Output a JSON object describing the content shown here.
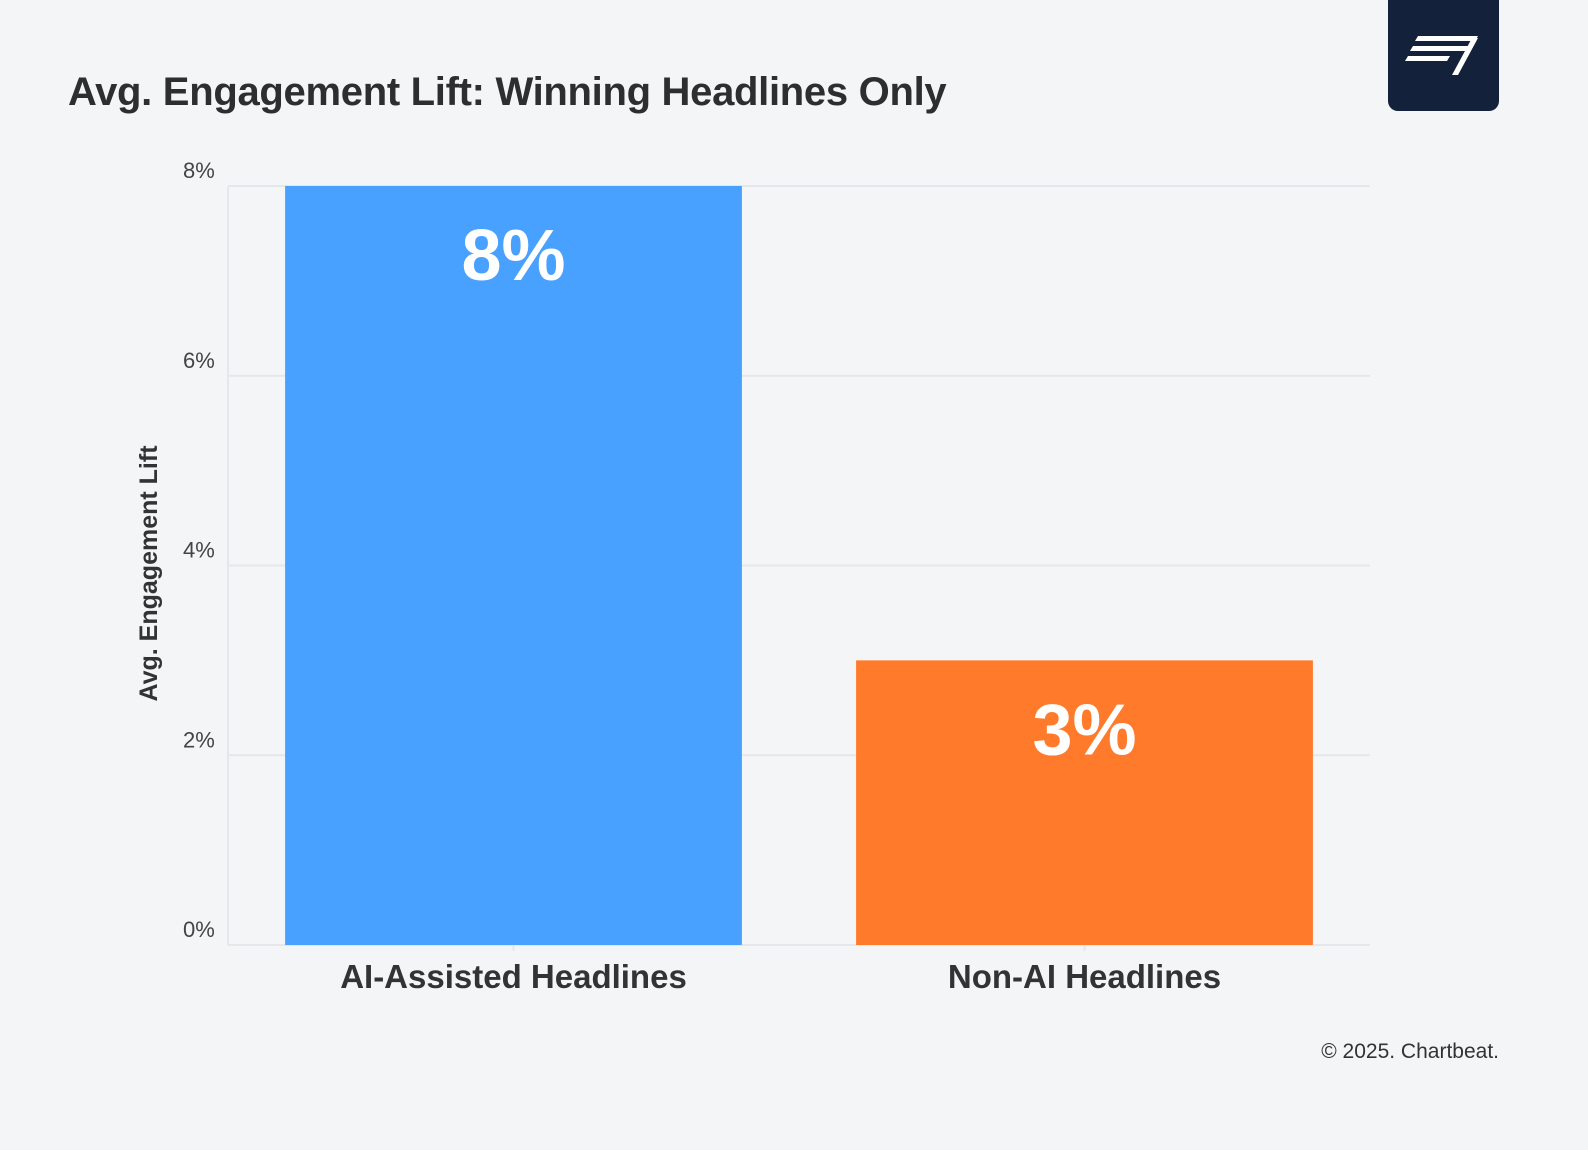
{
  "colors": {
    "background": "#f4f5f7",
    "logo_background": "#14213a",
    "ai_bar": "#48a0ff",
    "non_ai_bar": "#ff7b2b",
    "grid": "#e6e7ea",
    "text": "#333333"
  },
  "logo": {
    "icon": "chartbeat-logo-icon"
  },
  "chart_data": {
    "type": "bar",
    "title": "Avg. Engagement Lift: Winning Headlines Only",
    "xlabel": "",
    "ylabel": "Avg. Engagement Lift",
    "categories": [
      "AI-Assisted Headlines",
      "Non-AI Headlines"
    ],
    "values": [
      8,
      3
    ],
    "data_labels": [
      "8%",
      "3%"
    ],
    "bar_colors": [
      "#48a0ff",
      "#ff7b2b"
    ],
    "ylim": [
      0,
      8
    ],
    "yticks": [
      0,
      2,
      4,
      6,
      8
    ],
    "ytick_labels": [
      "0%",
      "2%",
      "4%",
      "6%",
      "8%"
    ],
    "grid": true,
    "legend": false
  },
  "footer": {
    "copyright": "© 2025. Chartbeat."
  }
}
